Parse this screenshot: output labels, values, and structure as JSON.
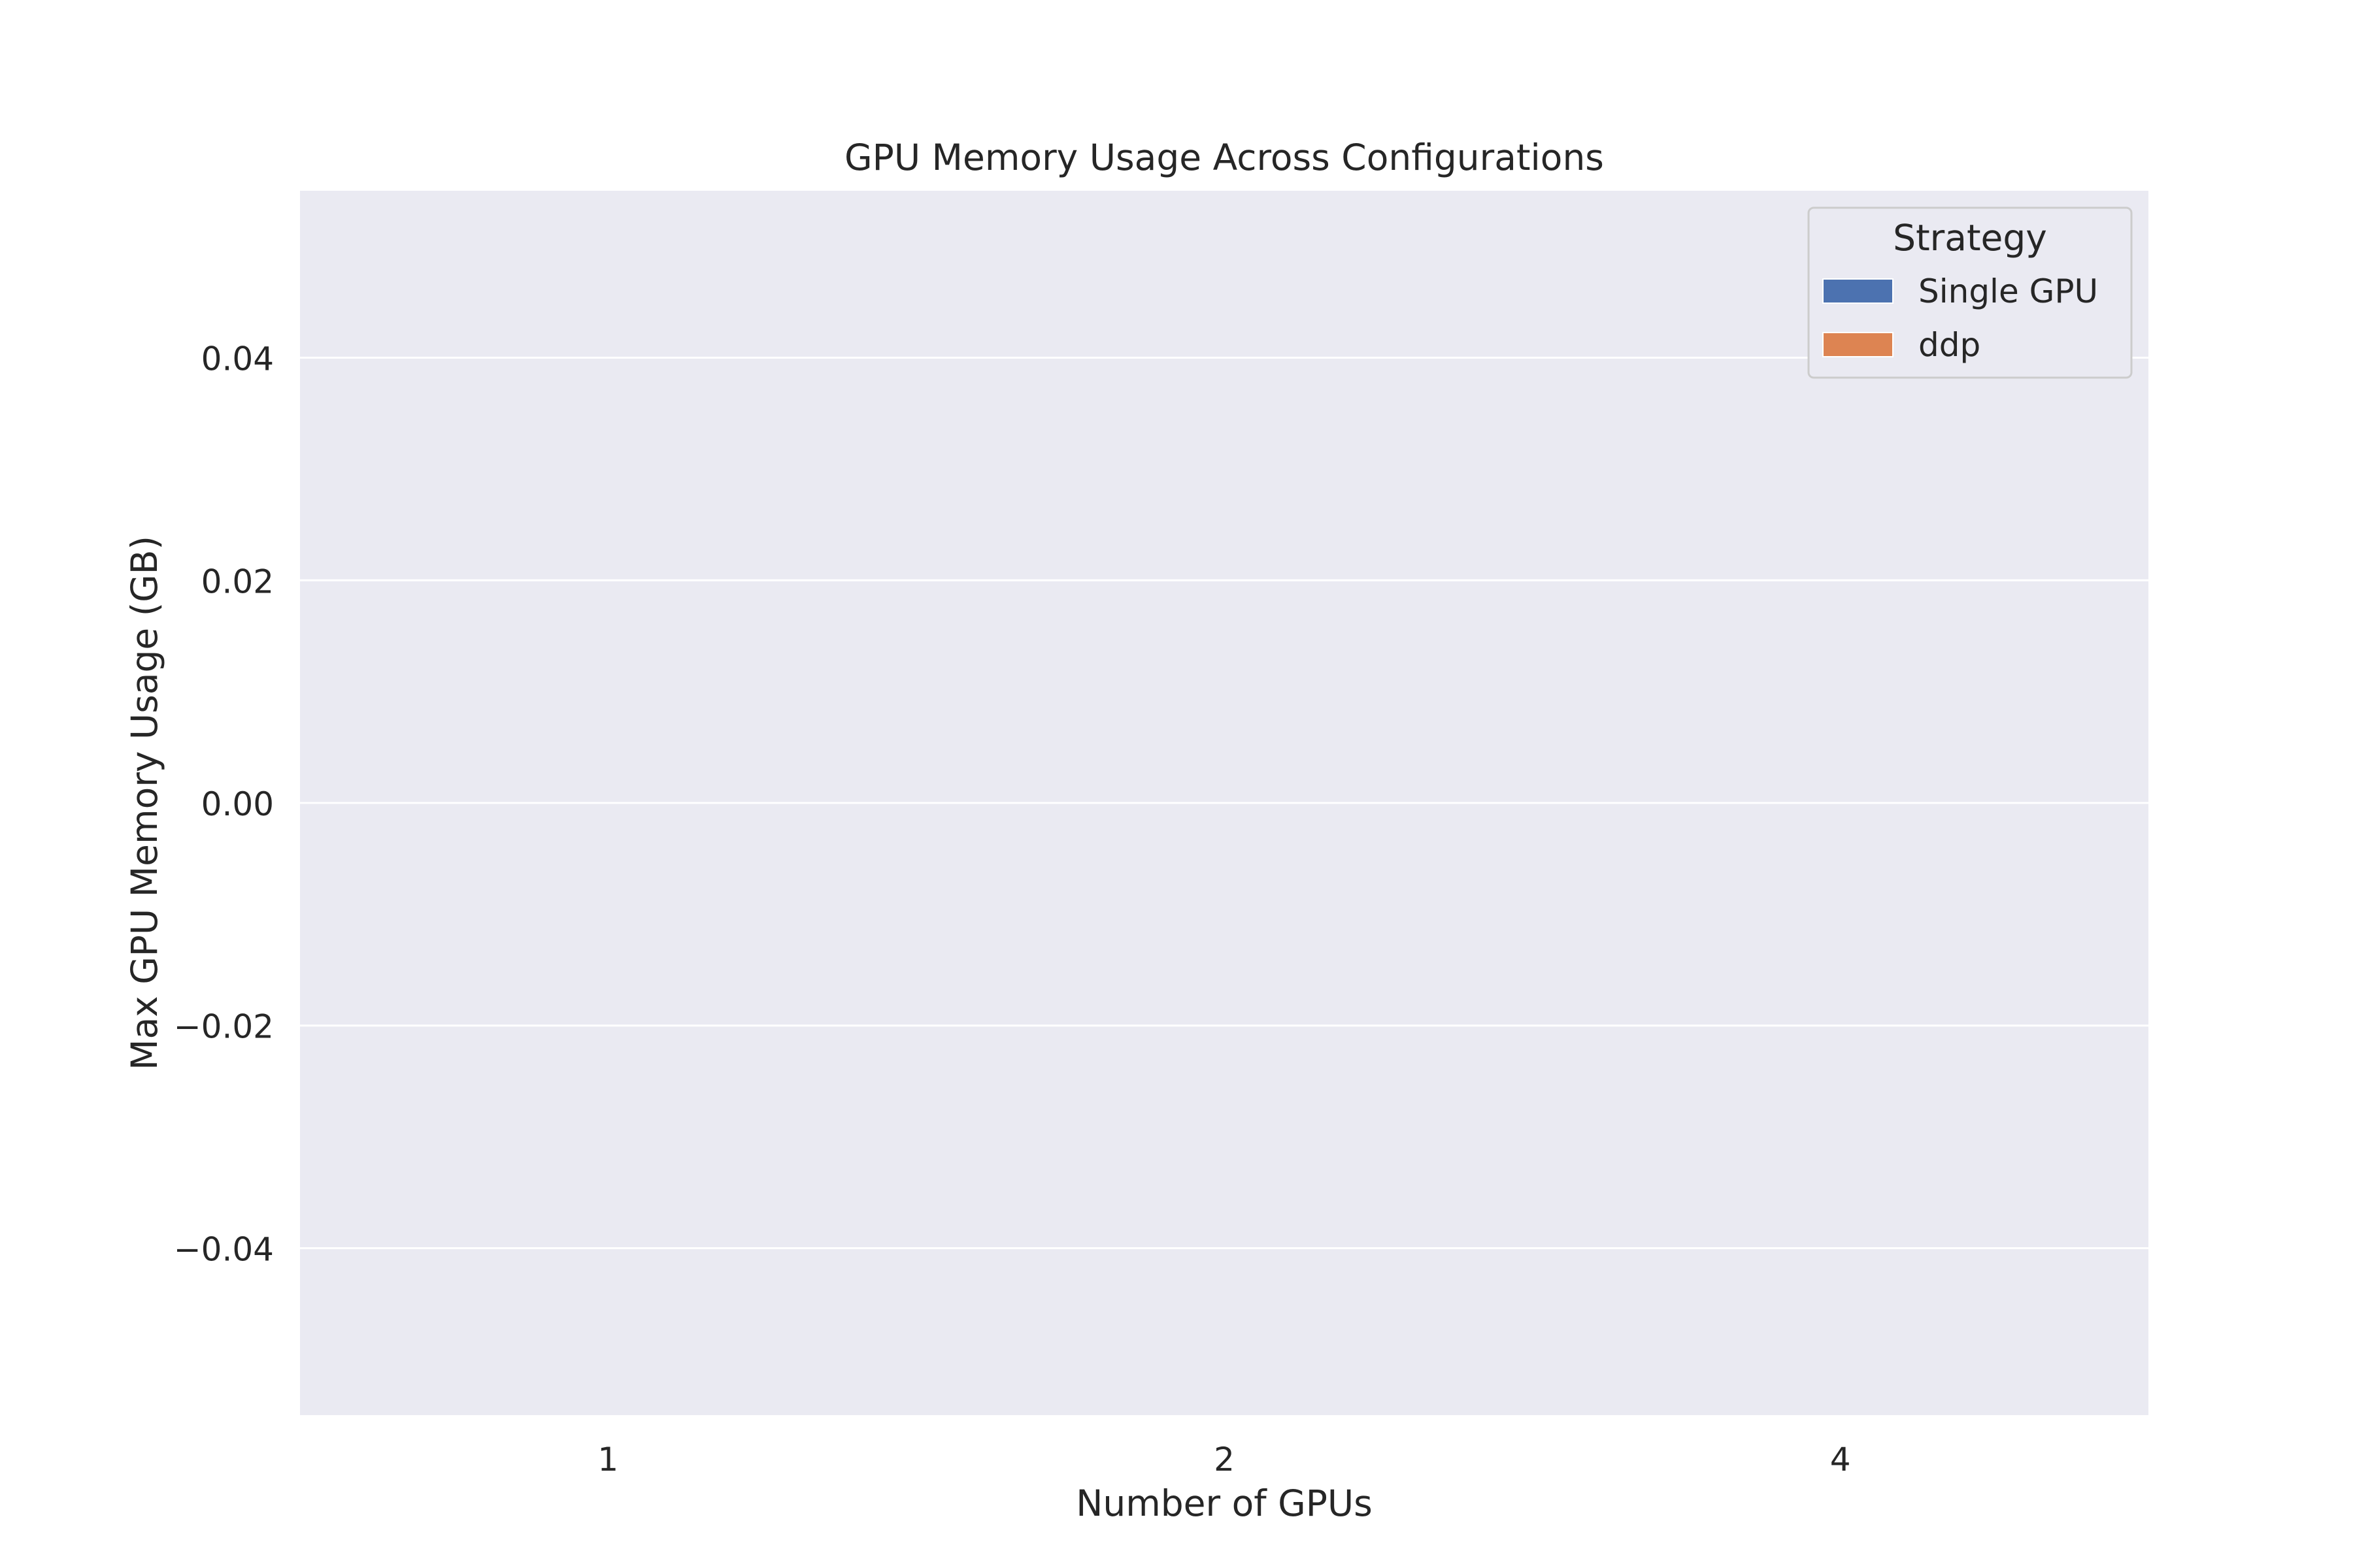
{
  "chart_data": {
    "type": "bar",
    "title": "GPU Memory Usage Across Configurations",
    "xlabel": "Number of GPUs",
    "ylabel": "Max GPU Memory Usage (GB)",
    "categories": [
      "1",
      "2",
      "4"
    ],
    "ylim": [
      -0.055,
      0.055
    ],
    "yticks": [
      0.04,
      0.02,
      0.0,
      -0.02,
      -0.04
    ],
    "ytick_labels": [
      "0.04",
      "0.02",
      "0.00",
      "−0.02",
      "−0.04"
    ],
    "grid": true,
    "legend": {
      "title": "Strategy",
      "placement": "top-right"
    },
    "series": [
      {
        "name": "Single GPU",
        "color": "#4c72b0",
        "values": [
          null,
          null,
          null
        ]
      },
      {
        "name": "ddp",
        "color": "#dd8452",
        "values": [
          null,
          null,
          null
        ]
      }
    ],
    "plot_background": "#eaeaf2",
    "grid_color": "#ffffff"
  }
}
